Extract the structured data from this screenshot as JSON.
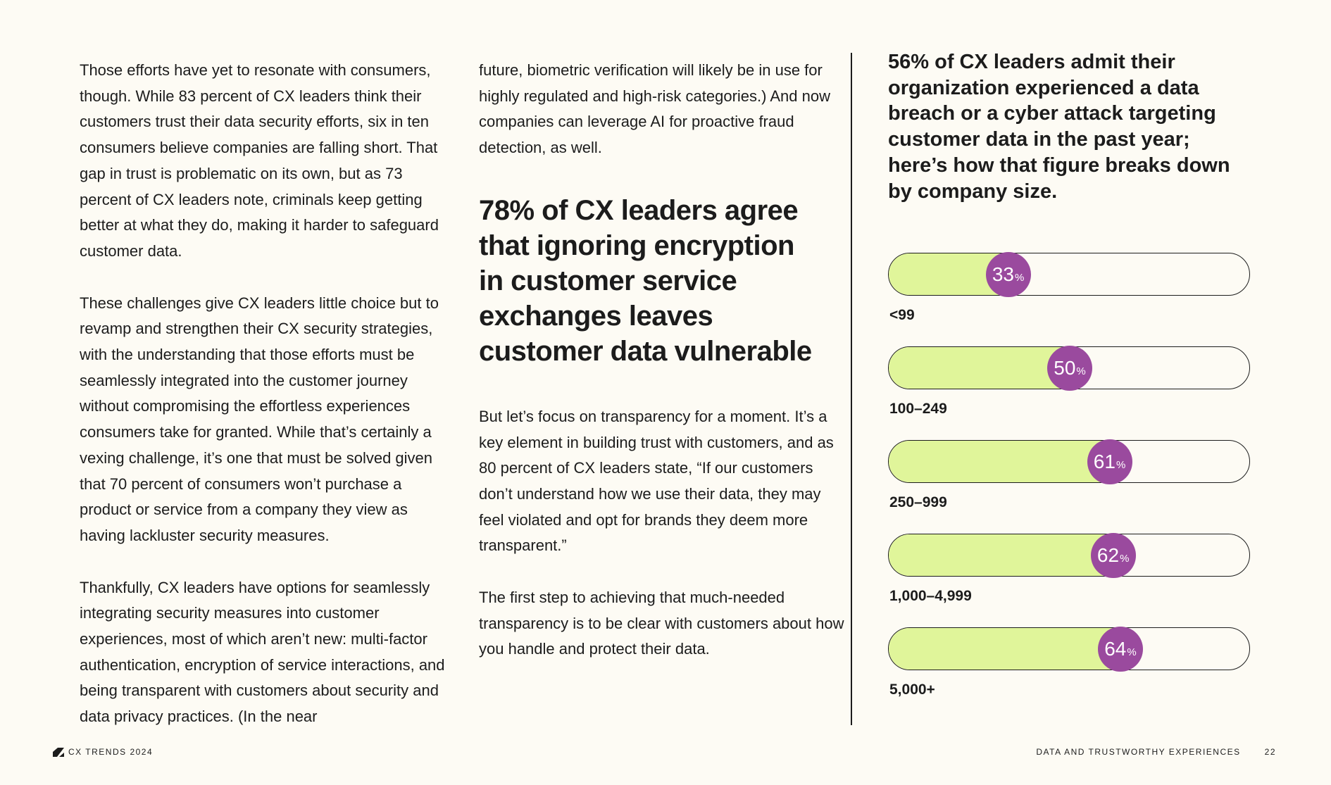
{
  "col1": {
    "p1": "Those efforts have yet to resonate with consumers, though. While 83 percent of CX leaders think their customers trust their data security efforts, six in ten consumers believe companies are falling short. That gap in trust is problematic on its own, but as 73 percent of CX leaders note, criminals keep getting better at what they do, making it harder to safeguard customer data.",
    "p2": "These challenges give CX leaders little choice but to revamp and strengthen their CX security strategies, with the understanding that those efforts must be seamlessly integrated into the customer journey without compromising the effortless experiences consumers take for granted. While that’s certainly a vexing challenge, it’s one that must be solved given that 70 percent of consumers won’t purchase a product or service from a company they view as having lackluster security measures.",
    "p3": "Thankfully, CX leaders have options for seamlessly integrating security measures into customer experiences, most of which aren’t new: multi-factor authentication, encryption of service interactions, and being transparent with customers about security and data privacy practices. (In the near"
  },
  "col2": {
    "p1": "future, biometric verification will likely be in use for highly regulated and high-risk categories.) And now companies can leverage AI for proactive fraud detection, as well.",
    "pullquote": "78% of CX leaders agree that ignoring encryption in customer service exchanges leaves customer data vulnerable",
    "p2": "But let’s focus on transparency for a moment. It’s a key element in building trust with customers, and as 80 percent of CX leaders state, “If our customers don’t understand how we use their data, they may feel violated and opt for brands they deem more transparent.”",
    "p3": "The first step to achieving that much-needed transparency is to be clear with customers about how you handle and protect their data."
  },
  "chart_data": {
    "type": "bar",
    "title": "56% of CX leaders admit their organization experienced a data breach or a cyber attack targeting customer data in the past year; here’s how that figure breaks down by company size.",
    "categories": [
      "<99",
      "100–249",
      "250–999",
      "1,000–4,999",
      "5,000+"
    ],
    "values": [
      33,
      50,
      61,
      62,
      64
    ],
    "unit": "%",
    "ylim": [
      0,
      100
    ],
    "colors": {
      "fill": "#e0f59a",
      "marker": "#9a4a9e"
    }
  },
  "footer": {
    "brand": "CX TRENDS 2024",
    "section": "DATA AND TRUSTWORTHY EXPERIENCES",
    "page": "22"
  }
}
